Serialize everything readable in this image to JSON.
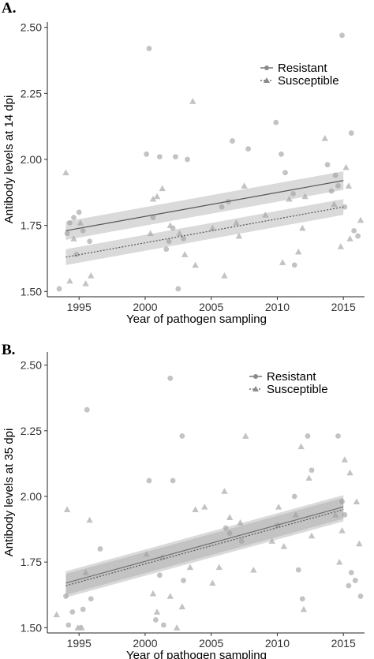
{
  "chart_data": [
    {
      "panel_label": "A.",
      "type": "scatter",
      "xlabel": "Year of pathogen sampling",
      "ylabel": "Antibody levels at 14 dpi",
      "xlim": [
        1992.6,
        2016.6
      ],
      "ylim": [
        1.48,
        2.52
      ],
      "xticks": [
        1995,
        2000,
        2005,
        2010,
        2015
      ],
      "yticks": [
        1.5,
        1.75,
        2.0,
        2.25,
        2.5
      ],
      "ytick_labels": [
        "1.50",
        "1.75",
        "2.00",
        "2.25",
        "2.50"
      ],
      "legend_position": "top-right",
      "grid": false,
      "series": [
        {
          "name": "Resistant",
          "marker": "circle",
          "linestyle": "solid",
          "color": "#555555",
          "points_color": "#bdbdbd",
          "fit": {
            "x": [
              1994,
              2015
            ],
            "y": [
              1.73,
              1.92
            ],
            "ci": 0.035
          },
          "points": [
            [
              1993.5,
              1.51
            ],
            [
              1994.1,
              1.72
            ],
            [
              1994.3,
              1.76
            ],
            [
              1994.6,
              1.78
            ],
            [
              1994.8,
              1.64
            ],
            [
              1995.0,
              1.8
            ],
            [
              1995.3,
              1.73
            ],
            [
              1995.8,
              1.69
            ],
            [
              2000.1,
              2.02
            ],
            [
              2000.3,
              2.42
            ],
            [
              2000.6,
              1.78
            ],
            [
              2001.1,
              2.01
            ],
            [
              2001.6,
              1.66
            ],
            [
              2001.8,
              1.69
            ],
            [
              2002.1,
              1.74
            ],
            [
              2002.3,
              2.01
            ],
            [
              2002.5,
              1.51
            ],
            [
              2002.9,
              1.7
            ],
            [
              2003.2,
              2.0
            ],
            [
              2005.8,
              1.82
            ],
            [
              2006.3,
              1.84
            ],
            [
              2006.6,
              2.07
            ],
            [
              2007.8,
              2.04
            ],
            [
              2009.9,
              2.14
            ],
            [
              2010.3,
              2.02
            ],
            [
              2010.6,
              1.95
            ],
            [
              2011.2,
              1.87
            ],
            [
              2011.3,
              1.6
            ],
            [
              2013.8,
              1.98
            ],
            [
              2014.1,
              1.88
            ],
            [
              2014.4,
              1.94
            ],
            [
              2014.6,
              1.9
            ],
            [
              2014.9,
              2.47
            ],
            [
              2015.1,
              1.82
            ],
            [
              2015.6,
              2.1
            ],
            [
              2015.8,
              1.73
            ],
            [
              2016.1,
              1.71
            ]
          ]
        },
        {
          "name": "Susceptible",
          "marker": "triangle",
          "linestyle": "dotted",
          "color": "#555555",
          "points_color": "#bdbdbd",
          "fit": {
            "x": [
              1994,
              2015
            ],
            "y": [
              1.63,
              1.82
            ],
            "ci": 0.03
          },
          "points": [
            [
              1994.0,
              1.95
            ],
            [
              1994.3,
              1.54
            ],
            [
              1994.6,
              1.7
            ],
            [
              1995.1,
              1.76
            ],
            [
              1995.5,
              1.53
            ],
            [
              1995.9,
              1.56
            ],
            [
              2000.4,
              1.72
            ],
            [
              2000.6,
              1.85
            ],
            [
              2000.9,
              1.86
            ],
            [
              2001.3,
              1.89
            ],
            [
              2001.9,
              1.75
            ],
            [
              2002.6,
              1.72
            ],
            [
              2003.0,
              1.64
            ],
            [
              2003.6,
              2.22
            ],
            [
              2003.8,
              1.6
            ],
            [
              2005.1,
              1.74
            ],
            [
              2006.0,
              1.56
            ],
            [
              2006.9,
              1.76
            ],
            [
              2007.1,
              1.71
            ],
            [
              2007.5,
              1.9
            ],
            [
              2009.1,
              1.79
            ],
            [
              2010.4,
              1.61
            ],
            [
              2010.9,
              1.85
            ],
            [
              2011.6,
              1.65
            ],
            [
              2011.9,
              1.74
            ],
            [
              2012.1,
              1.86
            ],
            [
              2013.6,
              2.08
            ],
            [
              2014.3,
              1.83
            ],
            [
              2014.8,
              1.67
            ],
            [
              2015.2,
              1.97
            ],
            [
              2015.4,
              1.9
            ],
            [
              2015.5,
              1.7
            ],
            [
              2016.3,
              1.77
            ]
          ]
        }
      ]
    },
    {
      "panel_label": "B.",
      "type": "scatter",
      "xlabel": "Year of pathogen sampling",
      "ylabel": "Antibody levels at 35 dpi",
      "xlim": [
        1992.6,
        2016.6
      ],
      "ylim": [
        1.48,
        2.55
      ],
      "xticks": [
        1995,
        2000,
        2005,
        2010,
        2015
      ],
      "yticks": [
        1.5,
        1.75,
        2.0,
        2.25,
        2.5
      ],
      "ytick_labels": [
        "1.50",
        "1.75",
        "2.00",
        "2.25",
        "2.50"
      ],
      "legend_position": "top-right",
      "grid": false,
      "series": [
        {
          "name": "Resistant",
          "marker": "circle",
          "linestyle": "solid",
          "color": "#555555",
          "points_color": "#bdbdbd",
          "fit": {
            "x": [
              1994,
              2015
            ],
            "y": [
              1.67,
              1.96
            ],
            "ci": 0.045
          },
          "points": [
            [
              1994.0,
              1.62
            ],
            [
              1994.2,
              1.51
            ],
            [
              1994.5,
              1.56
            ],
            [
              1995.1,
              1.5
            ],
            [
              1995.3,
              1.57
            ],
            [
              1995.6,
              2.33
            ],
            [
              1995.9,
              1.61
            ],
            [
              1996.6,
              1.8
            ],
            [
              2000.3,
              2.06
            ],
            [
              2000.8,
              1.53
            ],
            [
              2001.1,
              1.7
            ],
            [
              2001.4,
              1.51
            ],
            [
              2001.9,
              2.45
            ],
            [
              2002.1,
              2.06
            ],
            [
              2002.8,
              2.23
            ],
            [
              2002.9,
              1.68
            ],
            [
              2006.1,
              1.88
            ],
            [
              2006.4,
              1.86
            ],
            [
              2007.3,
              1.83
            ],
            [
              2010.0,
              1.89
            ],
            [
              2011.3,
              2.0
            ],
            [
              2011.6,
              1.72
            ],
            [
              2011.9,
              1.61
            ],
            [
              2012.3,
              2.23
            ],
            [
              2012.6,
              2.1
            ],
            [
              2014.6,
              2.23
            ],
            [
              2014.9,
              1.98
            ],
            [
              2015.1,
              1.93
            ],
            [
              2015.4,
              1.66
            ],
            [
              2015.6,
              1.71
            ],
            [
              2015.9,
              1.68
            ],
            [
              2016.3,
              1.62
            ]
          ]
        },
        {
          "name": "Susceptible",
          "marker": "triangle",
          "linestyle": "dotted",
          "color": "#555555",
          "points_color": "#bdbdbd",
          "fit": {
            "x": [
              1994,
              2015
            ],
            "y": [
              1.66,
              1.95
            ],
            "ci": 0.045
          },
          "points": [
            [
              1993.3,
              1.55
            ],
            [
              1994.1,
              1.95
            ],
            [
              1994.9,
              1.5
            ],
            [
              1995.2,
              1.5
            ],
            [
              1995.5,
              1.71
            ],
            [
              1995.8,
              1.91
            ],
            [
              2000.1,
              1.78
            ],
            [
              2000.6,
              1.63
            ],
            [
              2000.9,
              1.56
            ],
            [
              2001.3,
              1.77
            ],
            [
              2001.9,
              1.62
            ],
            [
              2002.4,
              1.5
            ],
            [
              2002.8,
              1.58
            ],
            [
              2003.4,
              1.73
            ],
            [
              2003.8,
              1.95
            ],
            [
              2004.5,
              1.96
            ],
            [
              2005.1,
              1.67
            ],
            [
              2005.6,
              1.73
            ],
            [
              2006.0,
              2.02
            ],
            [
              2006.4,
              1.92
            ],
            [
              2007.2,
              1.9
            ],
            [
              2007.6,
              2.23
            ],
            [
              2008.2,
              1.72
            ],
            [
              2009.6,
              1.83
            ],
            [
              2010.1,
              1.96
            ],
            [
              2010.5,
              1.81
            ],
            [
              2011.4,
              1.93
            ],
            [
              2011.8,
              2.19
            ],
            [
              2012.0,
              1.57
            ],
            [
              2012.4,
              2.07
            ],
            [
              2012.6,
              1.85
            ],
            [
              2014.4,
              1.93
            ],
            [
              2014.7,
              1.75
            ],
            [
              2014.9,
              1.87
            ],
            [
              2015.1,
              2.14
            ],
            [
              2015.5,
              2.09
            ],
            [
              2016.0,
              1.98
            ],
            [
              2016.2,
              1.82
            ]
          ]
        }
      ]
    }
  ]
}
